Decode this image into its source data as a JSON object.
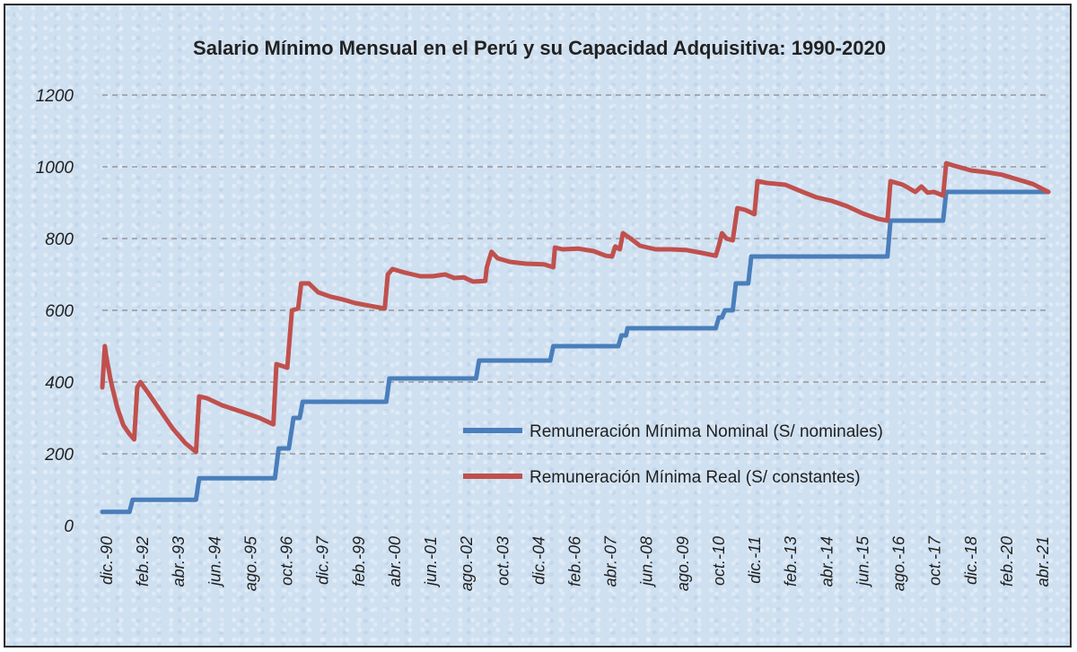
{
  "chart_data": {
    "type": "line",
    "title": "Salario Mínimo Mensual en el Perú y su Capacidad Adquisitiva: 1990-2020",
    "xlabel": "",
    "ylabel": "",
    "ylim": [
      0,
      1200
    ],
    "yticks": [
      "0",
      "200",
      "400",
      "600",
      "800",
      "1000",
      "1200"
    ],
    "grid": true,
    "legend_position": "bottom-right",
    "x_tick_labels": [
      "dic.-90",
      "feb.-92",
      "abr.-93",
      "jun.-94",
      "ago.-95",
      "oct.-96",
      "dic.-97",
      "feb.-99",
      "abr.-00",
      "jun.-01",
      "ago.-02",
      "oct.-03",
      "dic.-04",
      "feb.-06",
      "abr.-07",
      "jun.-08",
      "ago.-09",
      "oct.-10",
      "dic.-11",
      "feb.-13",
      "abr.-14",
      "jun.-15",
      "ago.-16",
      "oct.-17",
      "dic.-18",
      "feb.-20",
      "abr.-21"
    ],
    "x_range": [
      1990.92,
      2021.5
    ],
    "series": [
      {
        "name": "Remuneración Mínima Nominal (S/ nominales)",
        "color": "#4a7ebb",
        "step": true,
        "points": [
          [
            1990.92,
            38
          ],
          [
            1991.8,
            38
          ],
          [
            1991.9,
            72
          ],
          [
            1993.95,
            72
          ],
          [
            1994.05,
            132
          ],
          [
            1996.5,
            132
          ],
          [
            1996.62,
            215
          ],
          [
            1996.95,
            215
          ],
          [
            1997.1,
            300
          ],
          [
            1997.3,
            300
          ],
          [
            1997.4,
            345
          ],
          [
            2000.1,
            345
          ],
          [
            2000.2,
            410
          ],
          [
            2003.0,
            410
          ],
          [
            2003.1,
            460
          ],
          [
            2005.4,
            460
          ],
          [
            2005.5,
            500
          ],
          [
            2007.6,
            500
          ],
          [
            2007.7,
            530
          ],
          [
            2007.85,
            530
          ],
          [
            2007.9,
            550
          ],
          [
            2010.75,
            550
          ],
          [
            2010.85,
            580
          ],
          [
            2010.95,
            580
          ],
          [
            2011.05,
            600
          ],
          [
            2011.3,
            600
          ],
          [
            2011.4,
            675
          ],
          [
            2011.8,
            675
          ],
          [
            2011.9,
            750
          ],
          [
            2016.3,
            750
          ],
          [
            2016.4,
            850
          ],
          [
            2018.1,
            850
          ],
          [
            2018.2,
            930
          ],
          [
            2021.5,
            930
          ]
        ]
      },
      {
        "name": "Remuneración Mínima Real (S/ constantes)",
        "color": "#c0504d",
        "step": false,
        "points": [
          [
            1990.92,
            385
          ],
          [
            1991.0,
            500
          ],
          [
            1991.05,
            470
          ],
          [
            1991.2,
            400
          ],
          [
            1991.4,
            330
          ],
          [
            1991.6,
            280
          ],
          [
            1991.8,
            255
          ],
          [
            1991.95,
            240
          ],
          [
            1992.05,
            385
          ],
          [
            1992.15,
            400
          ],
          [
            1992.4,
            370
          ],
          [
            1992.8,
            320
          ],
          [
            1993.2,
            270
          ],
          [
            1993.6,
            230
          ],
          [
            1993.95,
            205
          ],
          [
            1994.05,
            360
          ],
          [
            1994.3,
            355
          ],
          [
            1994.8,
            335
          ],
          [
            1995.5,
            315
          ],
          [
            1996.0,
            300
          ],
          [
            1996.45,
            282
          ],
          [
            1996.55,
            450
          ],
          [
            1996.9,
            440
          ],
          [
            1997.05,
            600
          ],
          [
            1997.25,
            605
          ],
          [
            1997.35,
            675
          ],
          [
            1997.6,
            675
          ],
          [
            1997.9,
            650
          ],
          [
            1998.3,
            638
          ],
          [
            1998.7,
            630
          ],
          [
            1999.1,
            620
          ],
          [
            1999.6,
            612
          ],
          [
            2000.05,
            605
          ],
          [
            2000.15,
            700
          ],
          [
            2000.3,
            715
          ],
          [
            2000.7,
            705
          ],
          [
            2001.2,
            695
          ],
          [
            2001.6,
            695
          ],
          [
            2002.0,
            700
          ],
          [
            2002.3,
            690
          ],
          [
            2002.6,
            692
          ],
          [
            2002.9,
            680
          ],
          [
            2003.3,
            682
          ],
          [
            2003.35,
            720
          ],
          [
            2003.5,
            763
          ],
          [
            2003.7,
            745
          ],
          [
            2004.1,
            735
          ],
          [
            2004.6,
            730
          ],
          [
            2005.2,
            728
          ],
          [
            2005.5,
            720
          ],
          [
            2005.55,
            775
          ],
          [
            2005.8,
            770
          ],
          [
            2006.3,
            772
          ],
          [
            2006.8,
            765
          ],
          [
            2007.2,
            752
          ],
          [
            2007.4,
            750
          ],
          [
            2007.5,
            778
          ],
          [
            2007.65,
            770
          ],
          [
            2007.75,
            815
          ],
          [
            2008.0,
            800
          ],
          [
            2008.3,
            780
          ],
          [
            2008.8,
            770
          ],
          [
            2009.3,
            770
          ],
          [
            2009.8,
            768
          ],
          [
            2010.3,
            760
          ],
          [
            2010.75,
            752
          ],
          [
            2010.85,
            780
          ],
          [
            2010.95,
            815
          ],
          [
            2011.1,
            800
          ],
          [
            2011.3,
            795
          ],
          [
            2011.45,
            885
          ],
          [
            2011.7,
            880
          ],
          [
            2012.0,
            868
          ],
          [
            2012.1,
            960
          ],
          [
            2012.4,
            955
          ],
          [
            2013.0,
            950
          ],
          [
            2013.5,
            932
          ],
          [
            2014.0,
            915
          ],
          [
            2014.5,
            905
          ],
          [
            2015.0,
            890
          ],
          [
            2015.5,
            870
          ],
          [
            2016.0,
            855
          ],
          [
            2016.3,
            850
          ],
          [
            2016.4,
            960
          ],
          [
            2016.8,
            950
          ],
          [
            2017.2,
            930
          ],
          [
            2017.4,
            945
          ],
          [
            2017.6,
            928
          ],
          [
            2017.8,
            930
          ],
          [
            2018.1,
            920
          ],
          [
            2018.2,
            1010
          ],
          [
            2018.5,
            1002
          ],
          [
            2019.0,
            990
          ],
          [
            2019.5,
            985
          ],
          [
            2020.0,
            978
          ],
          [
            2020.5,
            965
          ],
          [
            2021.0,
            952
          ],
          [
            2021.5,
            930
          ]
        ]
      }
    ]
  }
}
